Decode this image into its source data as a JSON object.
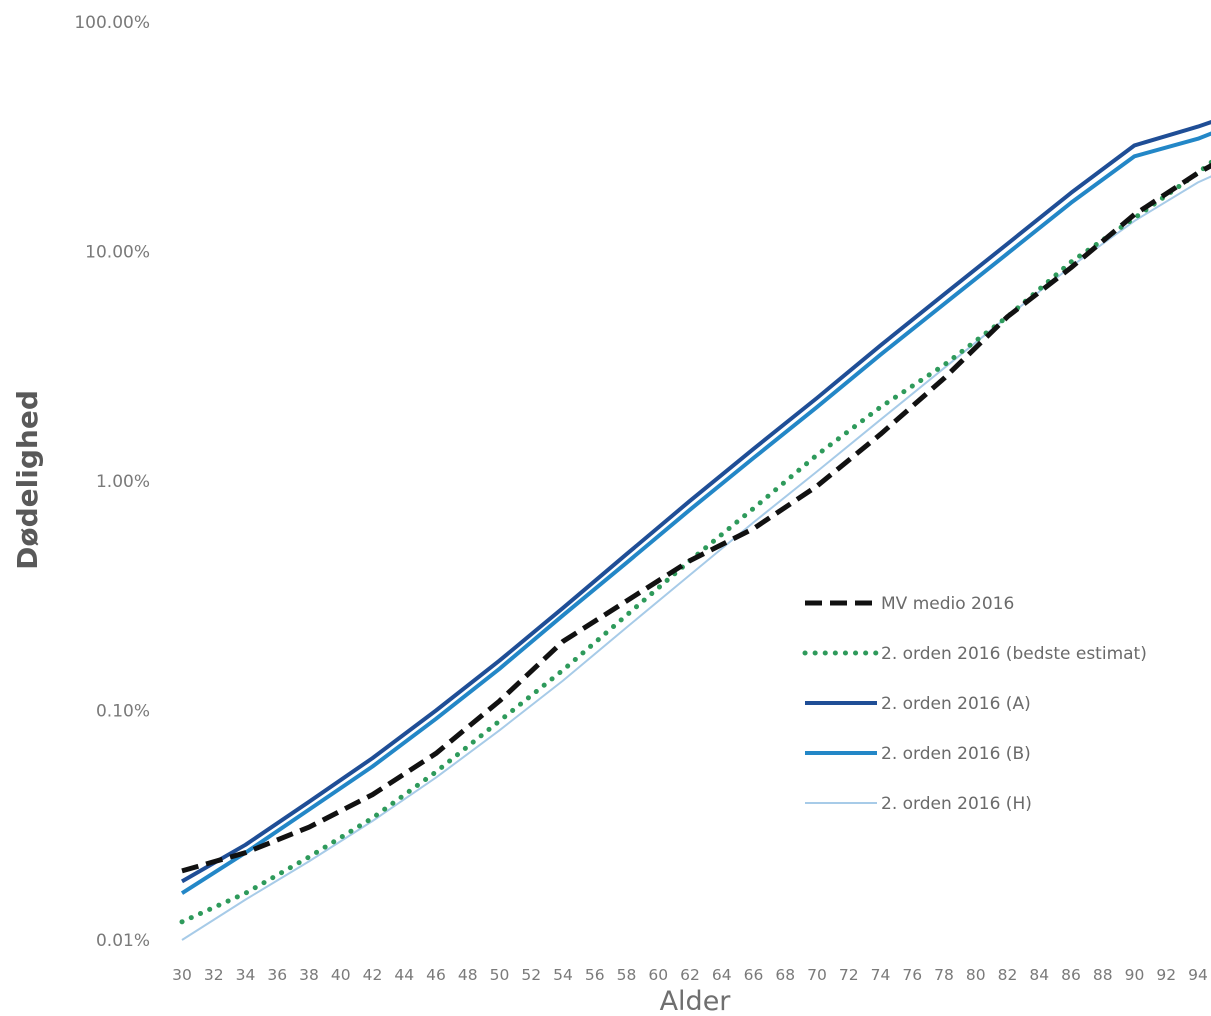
{
  "chart_data": {
    "type": "line",
    "xlabel": "Alder",
    "ylabel": "Dødelighed",
    "yscale": "log",
    "ylim": [
      0.01,
      100
    ],
    "yticks": [
      {
        "value": 0.01,
        "label": "0.01%"
      },
      {
        "value": 0.1,
        "label": "0.10%"
      },
      {
        "value": 1,
        "label": "1.00%"
      },
      {
        "value": 10,
        "label": "10.00%"
      },
      {
        "value": 100,
        "label": "100.00%"
      }
    ],
    "xlim": [
      30,
      95
    ],
    "xticks": [
      "30",
      "32",
      "34",
      "36",
      "38",
      "40",
      "42",
      "44",
      "46",
      "48",
      "50",
      "52",
      "54",
      "56",
      "58",
      "60",
      "62",
      "64",
      "66",
      "68",
      "70",
      "72",
      "74",
      "76",
      "78",
      "80",
      "82",
      "84",
      "86",
      "88",
      "90",
      "92",
      "94"
    ],
    "grid": false,
    "legend_position": "right",
    "series": [
      {
        "name": "MV medio 2016",
        "color": "#111111",
        "style": "dashed",
        "x": [
          30,
          34,
          38,
          42,
          46,
          50,
          54,
          58,
          62,
          66,
          70,
          74,
          78,
          82,
          86,
          90,
          94,
          95
        ],
        "y": [
          0.02,
          0.024,
          0.031,
          0.043,
          0.065,
          0.11,
          0.2,
          0.3,
          0.45,
          0.62,
          0.95,
          1.6,
          2.8,
          5.2,
          8.5,
          14.5,
          22,
          24
        ]
      },
      {
        "name": "2. orden 2016 (bedste estimat)",
        "color": "#2e9a5b",
        "style": "dotted",
        "x": [
          30,
          34,
          38,
          42,
          46,
          50,
          54,
          58,
          62,
          66,
          70,
          74,
          78,
          82,
          86,
          90,
          94,
          95
        ],
        "y": [
          0.012,
          0.016,
          0.023,
          0.034,
          0.054,
          0.09,
          0.15,
          0.26,
          0.45,
          0.76,
          1.3,
          2.1,
          3.2,
          5.2,
          9,
          14,
          22,
          25
        ]
      },
      {
        "name": "2. orden 2016 (A)",
        "color": "#1f4e96",
        "style": "solid",
        "x": [
          30,
          34,
          38,
          42,
          46,
          50,
          54,
          58,
          62,
          66,
          70,
          74,
          78,
          82,
          86,
          90,
          94,
          95
        ],
        "y": [
          0.018,
          0.026,
          0.04,
          0.062,
          0.1,
          0.165,
          0.28,
          0.48,
          0.82,
          1.38,
          2.3,
          3.9,
          6.5,
          10.8,
          18,
          29,
          35,
          37
        ]
      },
      {
        "name": "2. orden 2016 (B)",
        "color": "#2387c7",
        "style": "solid",
        "x": [
          30,
          34,
          38,
          42,
          46,
          50,
          54,
          58,
          62,
          66,
          70,
          74,
          78,
          82,
          86,
          90,
          94,
          95
        ],
        "y": [
          0.016,
          0.024,
          0.037,
          0.057,
          0.092,
          0.152,
          0.26,
          0.44,
          0.75,
          1.26,
          2.1,
          3.55,
          5.9,
          9.8,
          16.3,
          26,
          31,
          33
        ]
      },
      {
        "name": "2. orden 2016 (H)",
        "color": "#a7cbe8",
        "style": "solid",
        "x": [
          30,
          34,
          38,
          42,
          46,
          50,
          54,
          58,
          62,
          66,
          70,
          74,
          78,
          82,
          86,
          90,
          94,
          95
        ],
        "y": [
          0.01,
          0.015,
          0.022,
          0.033,
          0.051,
          0.082,
          0.135,
          0.23,
          0.39,
          0.66,
          1.1,
          1.85,
          3.1,
          5.2,
          8.6,
          13.6,
          20,
          21.5
        ]
      }
    ]
  }
}
